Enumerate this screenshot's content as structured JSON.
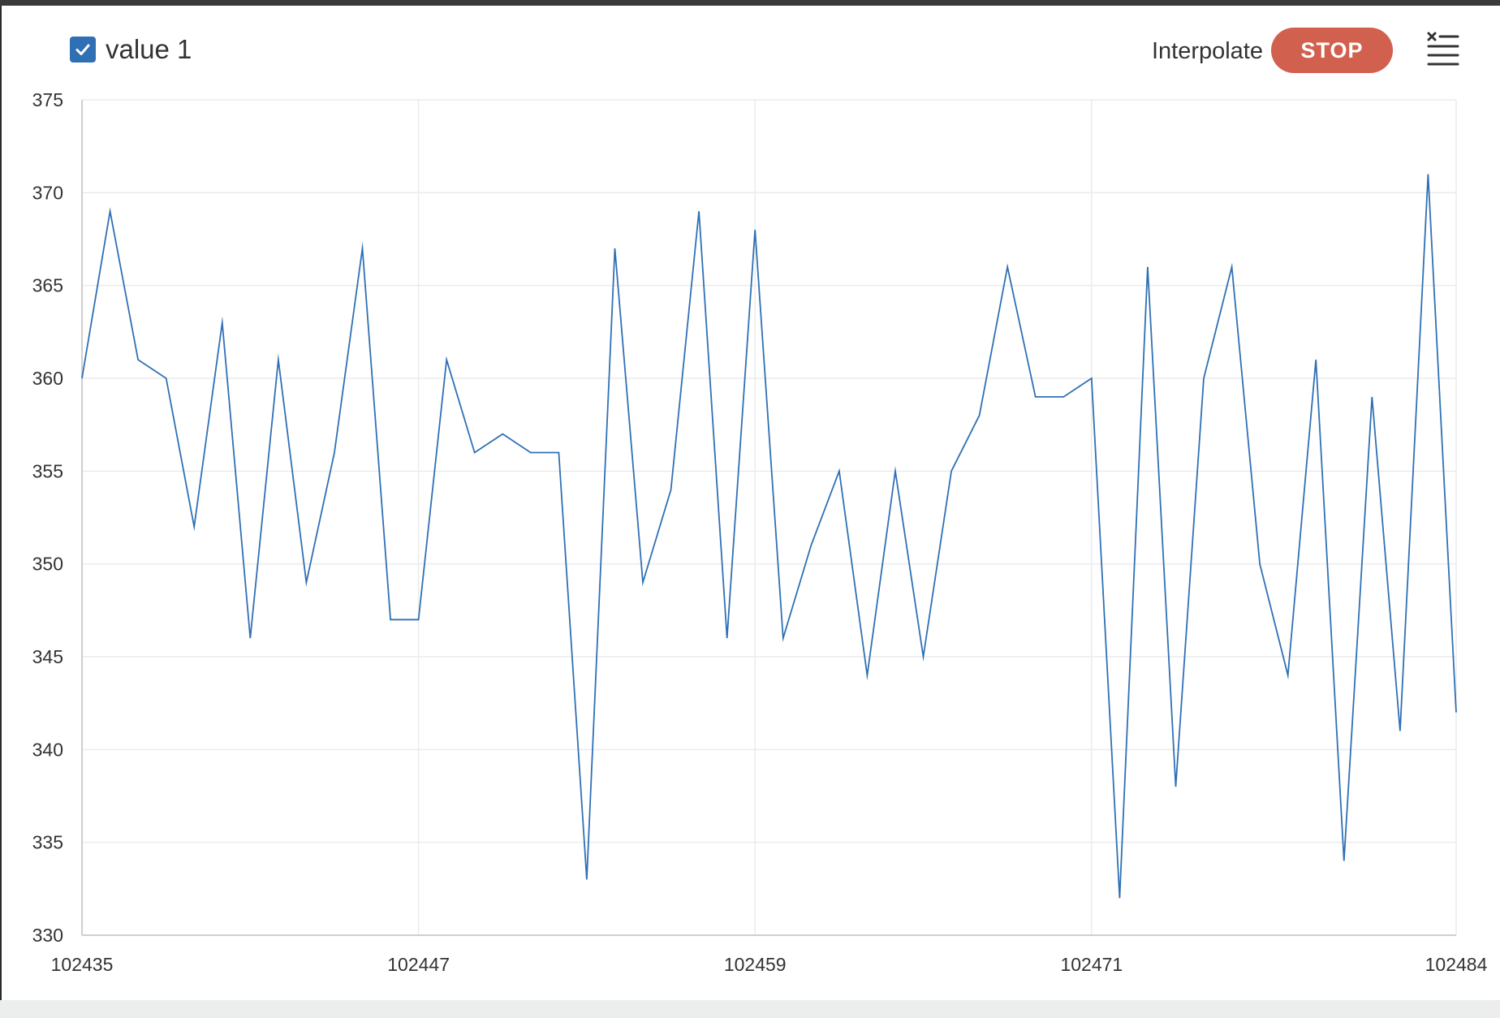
{
  "toolbar": {
    "series": [
      {
        "label": "value 1",
        "checked": true,
        "color": "#2f70b5"
      }
    ],
    "interpolate_label": "Interpolate",
    "interpolate_on": false,
    "stop_label": "STOP",
    "clear_icon": "clear-list-icon"
  },
  "colors": {
    "line": "#2f70b5",
    "stop_button": "#d1604f",
    "grid": "#ebebeb",
    "axis": "#cfcfcf"
  },
  "chart_data": {
    "type": "line",
    "title": "",
    "xlabel": "",
    "ylabel": "",
    "xlim": [
      102435,
      102484
    ],
    "ylim": [
      330,
      375
    ],
    "x_ticks": [
      102435,
      102447,
      102459,
      102471,
      102484
    ],
    "y_ticks": [
      330,
      335,
      340,
      345,
      350,
      355,
      360,
      365,
      370,
      375
    ],
    "grid": true,
    "legend": "top-left",
    "series": [
      {
        "name": "value 1",
        "color": "#2f70b5",
        "x": [
          102435,
          102436,
          102437,
          102438,
          102439,
          102440,
          102441,
          102442,
          102443,
          102444,
          102445,
          102446,
          102447,
          102448,
          102449,
          102450,
          102451,
          102452,
          102453,
          102454,
          102455,
          102456,
          102457,
          102458,
          102459,
          102460,
          102461,
          102462,
          102463,
          102464,
          102465,
          102466,
          102467,
          102468,
          102469,
          102470,
          102471,
          102472,
          102473,
          102474,
          102475,
          102476,
          102477,
          102478,
          102479,
          102480,
          102481,
          102482,
          102483,
          102484
        ],
        "values": [
          360,
          369,
          361,
          360,
          352,
          363,
          346,
          361,
          349,
          356,
          367,
          347,
          347,
          361,
          356,
          357,
          356,
          356,
          333,
          367,
          349,
          354,
          369,
          346,
          368,
          346,
          351,
          355,
          344,
          355,
          345,
          355,
          358,
          366,
          359,
          359,
          360,
          332,
          366,
          338,
          360,
          366,
          350,
          344,
          361,
          334,
          359,
          341,
          371,
          342
        ]
      }
    ]
  }
}
